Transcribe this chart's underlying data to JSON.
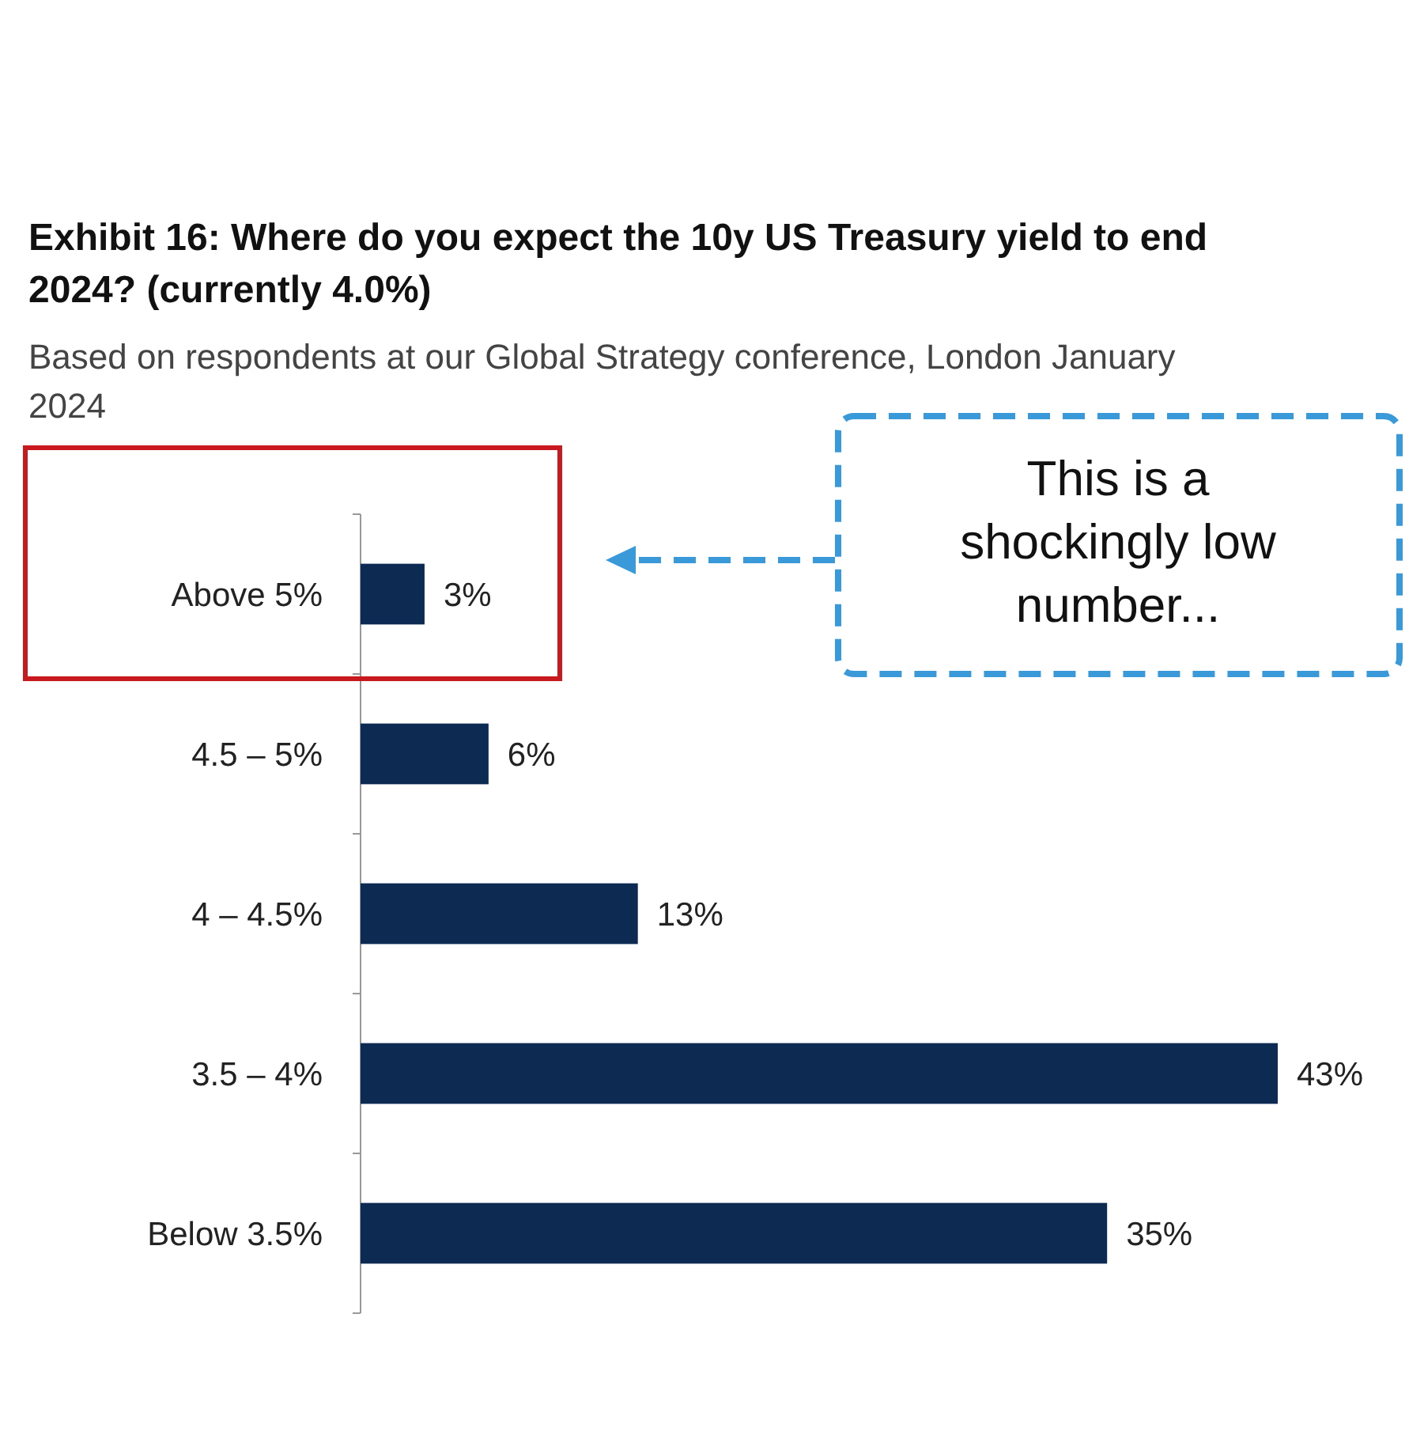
{
  "chart_data": {
    "type": "bar",
    "orientation": "horizontal",
    "title": "Exhibit 16: Where do you expect the 10y US Treasury yield to end 2024? (currently 4.0%)",
    "subtitle": "Based on respondents at our Global Strategy conference, London January 2024",
    "categories": [
      "Above 5%",
      "4.5 – 5%",
      "4 – 4.5%",
      "3.5 – 4%",
      "Below 3.5%"
    ],
    "values": [
      3,
      6,
      13,
      43,
      35
    ],
    "color": "#0c2a52",
    "data_labels": true,
    "value_labels": [
      "3%",
      "6%",
      "13%",
      "43%",
      "35%"
    ],
    "annotations": [
      "This is a shockingly low number..."
    ]
  }
}
